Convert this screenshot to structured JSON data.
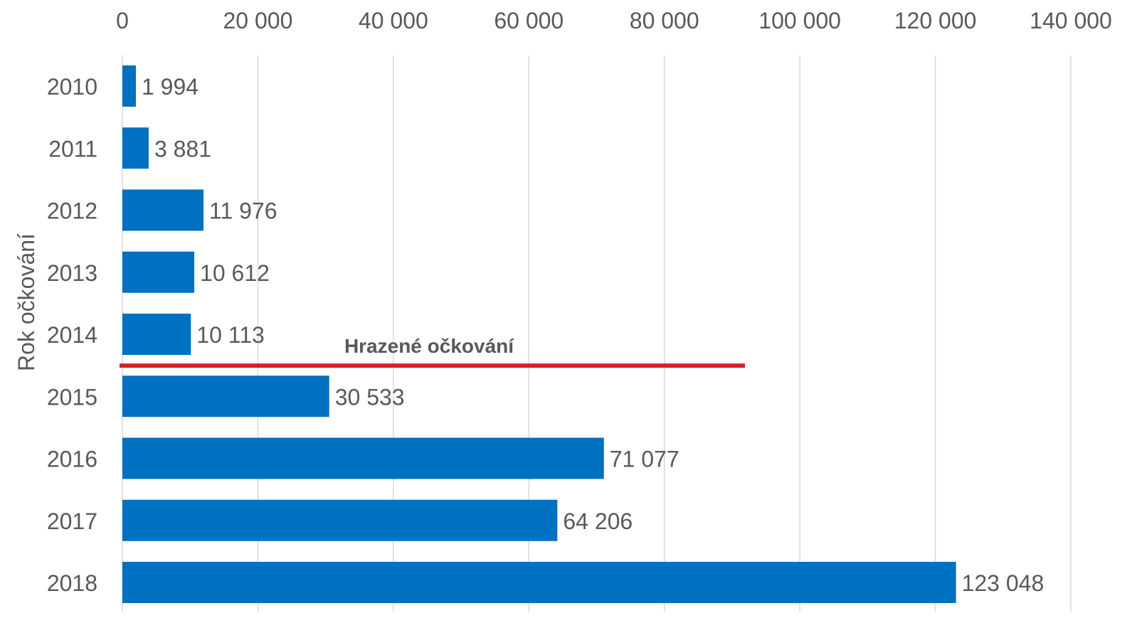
{
  "chart_data": {
    "type": "bar",
    "orientation": "horizontal",
    "categories": [
      "2010",
      "2011",
      "2012",
      "2013",
      "2014",
      "2015",
      "2016",
      "2017",
      "2018"
    ],
    "values": [
      1994,
      3881,
      11976,
      10612,
      10113,
      30533,
      71077,
      64206,
      123048
    ],
    "data_labels": [
      "1 994",
      "3 881",
      "11 976",
      "10 612",
      "10 113",
      "30 533",
      "71 077",
      "64 206",
      "123 048"
    ],
    "title": "",
    "xlabel": "",
    "ylabel": "Rok očkování",
    "xlim": [
      0,
      140000
    ],
    "x_ticks": [
      0,
      20000,
      40000,
      60000,
      80000,
      100000,
      120000,
      140000
    ],
    "x_tick_labels": [
      "0",
      "20 000",
      "40 000",
      "60 000",
      "80 000",
      "100 000",
      "120 000",
      "140 000"
    ],
    "x_axis_position": "top",
    "grid": true,
    "bar_color": "#0070C0",
    "annotation": {
      "text": "Hrazené očkování",
      "color": "#DA1F26",
      "between_categories": [
        "2014",
        "2015"
      ]
    }
  }
}
